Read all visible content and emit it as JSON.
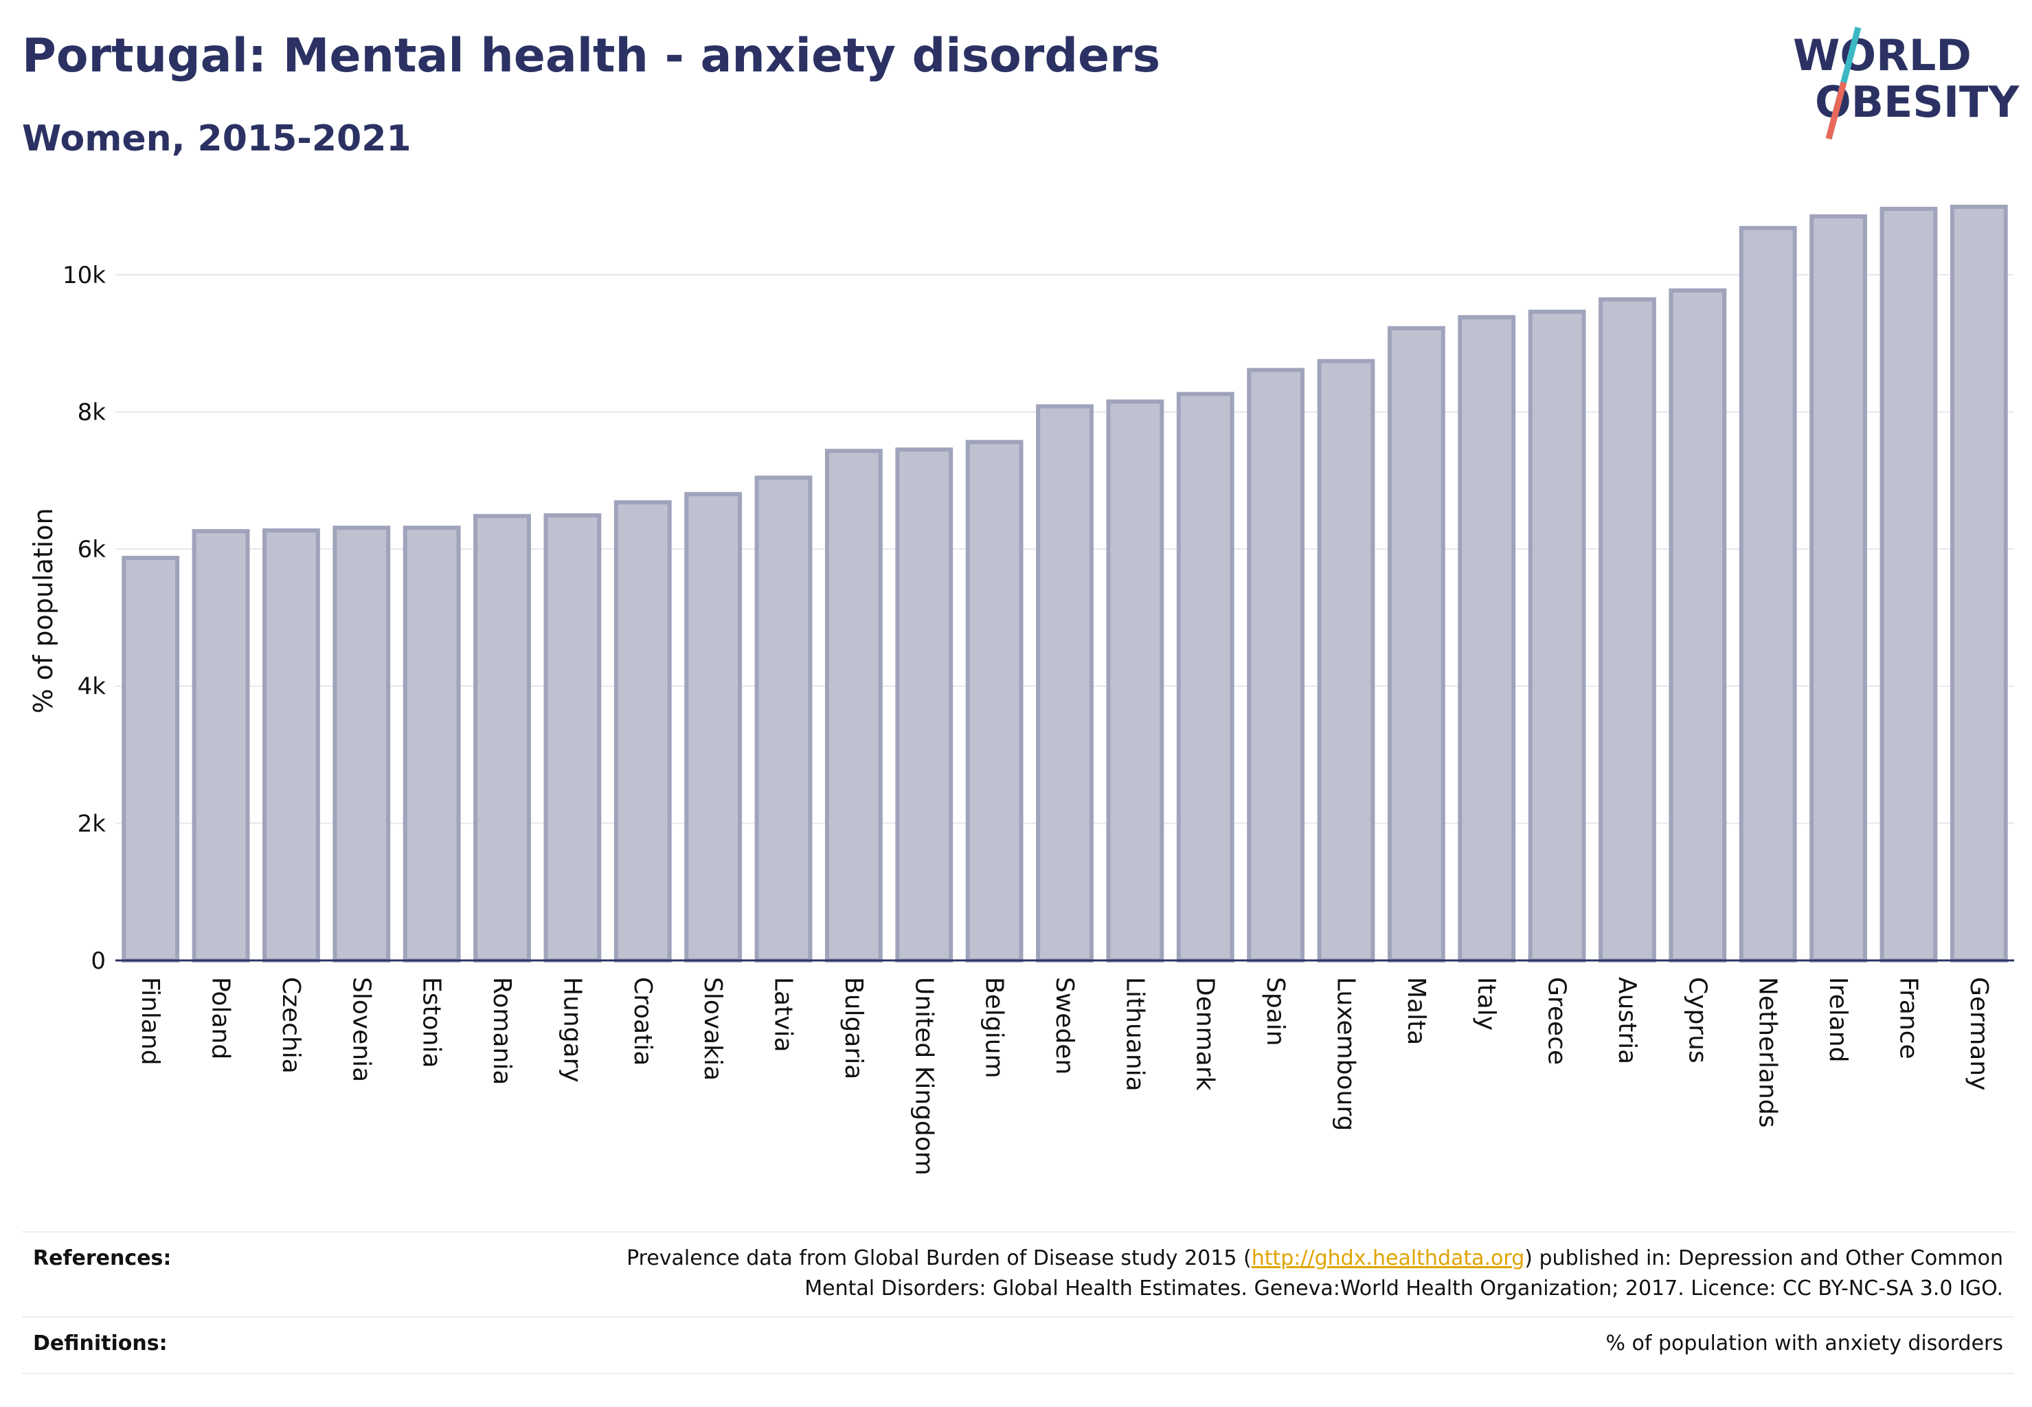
{
  "header": {
    "title": "Portugal: Mental health - anxiety disorders",
    "subtitle": "Women, 2015-2021"
  },
  "logo": {
    "line1": "WORLD",
    "line2": "OBESITY",
    "icon": "slash-mark-icon",
    "colors": {
      "navy": "#2b3263",
      "teal": "#3bb8c3",
      "coral": "#e8685a"
    }
  },
  "chart_data": {
    "type": "bar",
    "title": "Portugal: Mental health - anxiety disorders",
    "subtitle": "Women, 2015-2021",
    "xlabel": "",
    "ylabel": "% of population",
    "ylim": [
      0,
      11000
    ],
    "yticks": [
      0,
      2000,
      4000,
      6000,
      8000,
      10000
    ],
    "ytick_labels": [
      "0",
      "2k",
      "4k",
      "6k",
      "8k",
      "10k"
    ],
    "grid": true,
    "bar_color": "#bfc1d0",
    "bar_edge_color": "#9fa3bb",
    "categories": [
      "Finland",
      "Poland",
      "Czechia",
      "Slovenia",
      "Estonia",
      "Romania",
      "Hungary",
      "Croatia",
      "Slovakia",
      "Latvia",
      "Bulgaria",
      "United Kingdom",
      "Belgium",
      "Sweden",
      "Lithuania",
      "Denmark",
      "Spain",
      "Luxembourg",
      "Malta",
      "Italy",
      "Greece",
      "Austria",
      "Cyprus",
      "Netherlands",
      "Ireland",
      "France",
      "Germany"
    ],
    "values": [
      5870,
      6260,
      6270,
      6310,
      6310,
      6480,
      6490,
      6680,
      6800,
      7040,
      7430,
      7450,
      7560,
      8080,
      8150,
      8260,
      8610,
      8740,
      9220,
      9380,
      9460,
      9640,
      9770,
      10680,
      10850,
      10960,
      10990
    ]
  },
  "footer": {
    "references_label": "References:",
    "references_text_before": "Prevalence data from Global Burden of Disease study 2015 (",
    "references_link": "http://ghdx.healthdata.org",
    "references_text_after": ") published in: Depression and Other Common",
    "references_line2": "Mental Disorders: Global Health Estimates. Geneva:World Health Organization; 2017. Licence: CC BY-NC-SA 3.0 IGO.",
    "definitions_label": "Definitions:",
    "definitions_text": "% of population with anxiety disorders"
  }
}
